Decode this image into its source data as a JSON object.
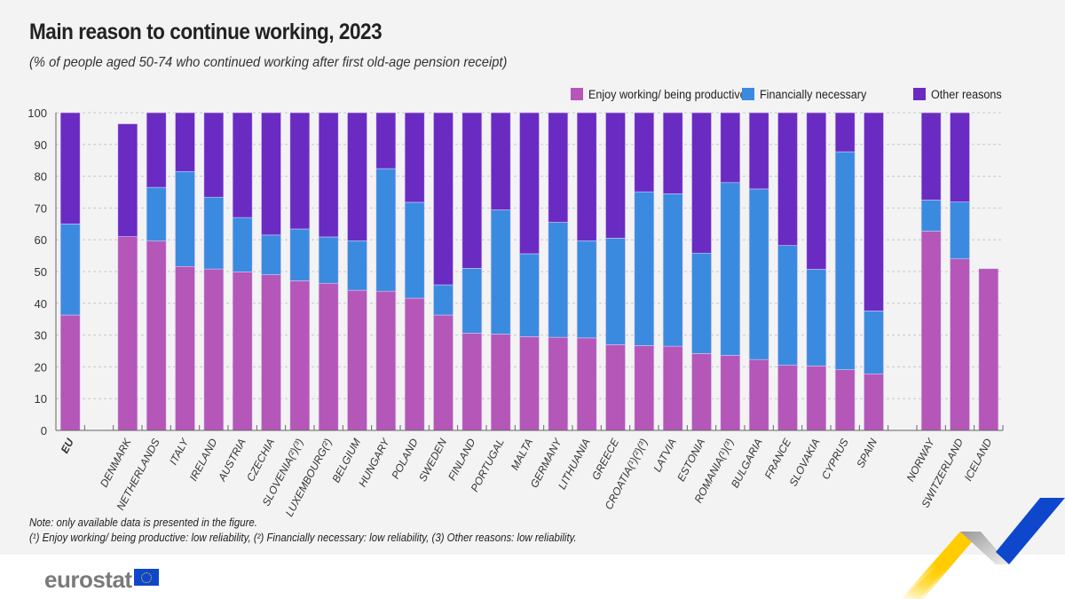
{
  "chart_data": {
    "type": "bar",
    "stacked": true,
    "title": "Main reason to continue working, 2023",
    "subtitle": "(% of people aged 50-74 who continued working after first old-age pension receipt)",
    "ylim": [
      0,
      100
    ],
    "yticks": [
      0,
      10,
      20,
      30,
      40,
      50,
      60,
      70,
      80,
      90,
      100
    ],
    "grid": true,
    "legend_position": "top-right",
    "categories": [
      "EU",
      "",
      "DENMARK",
      "NETHERLANDS",
      "ITALY",
      "IRELAND",
      "AUSTRIA",
      "CZECHIA",
      "SLOVENIA(²)(³)",
      "LUXEMBOURG(²)",
      "BELGIUM",
      "HUNGARY",
      "POLAND",
      "SWEDEN",
      "FINLAND",
      "PORTUGAL",
      "MALTA",
      "GERMANY",
      "LITHUANIA",
      "GREECE",
      "CROATIA(¹)(²)(³)",
      "LATVIA",
      "ESTONIA",
      "ROMANIA(¹)(³)",
      "BULGARIA",
      "FRANCE",
      "SLOVAKIA",
      "CYPRUS",
      "SPAIN",
      "",
      "NORWAY",
      "SWITZERLAND",
      "ICELAND"
    ],
    "series": [
      {
        "name": "Enjoy working/ being productive",
        "color": "#b457b8",
        "values": [
          36.3,
          null,
          61.0,
          59.6,
          51.6,
          50.8,
          49.9,
          49.0,
          47.1,
          46.3,
          44.1,
          43.8,
          41.6,
          36.3,
          30.6,
          30.3,
          29.5,
          29.3,
          29.1,
          27.0,
          26.7,
          26.5,
          24.2,
          23.6,
          22.3,
          20.5,
          20.3,
          19.1,
          17.8,
          null,
          62.7,
          54.0,
          50.9
        ]
      },
      {
        "name": "Financially necessary",
        "color": "#3a8be0",
        "values": [
          28.7,
          null,
          0,
          16.9,
          29.9,
          22.6,
          17.1,
          12.5,
          16.3,
          14.6,
          15.6,
          38.6,
          30.2,
          9.5,
          20.4,
          39.1,
          26.1,
          36.2,
          30.6,
          33.5,
          48.4,
          48.0,
          31.6,
          54.4,
          53.7,
          37.7,
          30.4,
          68.6,
          19.8,
          null,
          9.8,
          17.9,
          0
        ]
      },
      {
        "name": "Other reasons",
        "color": "#6a2bc3",
        "values": [
          35.0,
          null,
          35.5,
          23.5,
          18.5,
          26.6,
          33.0,
          38.5,
          36.6,
          39.1,
          40.3,
          17.6,
          28.2,
          54.2,
          49.0,
          30.6,
          44.4,
          34.5,
          40.3,
          39.5,
          24.9,
          25.5,
          44.2,
          22.0,
          24.0,
          41.8,
          49.3,
          12.3,
          62.4,
          null,
          27.5,
          28.1,
          0
        ]
      }
    ],
    "bold_categories": [
      "EU"
    ]
  },
  "notes": [
    "Note: only available data is presented in the figure.",
    "(¹) Enjoy working/ being productive: low reliability, (²) Financially necessary: low reliability, (3) Other reasons: low reliability."
  ],
  "logo": "eurostat"
}
